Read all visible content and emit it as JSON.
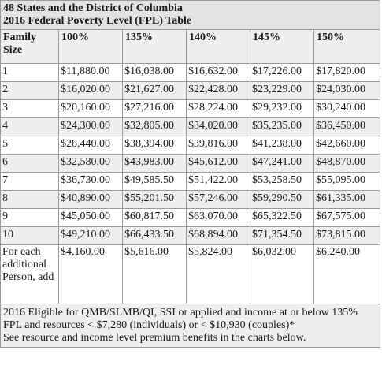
{
  "title_lines": [
    "48 States and the District of Columbia",
    "2016 Federal Poverty Level (FPL) Table"
  ],
  "columns": [
    "Family Size",
    "100%",
    "135%",
    "140%",
    "145%",
    "150%"
  ],
  "rows": [
    [
      "1",
      "$11,880.00",
      "$16,038.00",
      "$16,632.00",
      "$17,226.00",
      "$17,820.00"
    ],
    [
      "2",
      "$16,020.00",
      "$21,627.00",
      "$22,428.00",
      "$23,229.00",
      "$24,030.00"
    ],
    [
      "3",
      "$20,160.00",
      "$27,216.00",
      "$28,224.00",
      "$29,232.00",
      "$30,240.00"
    ],
    [
      "4",
      "$24,300.00",
      "$32,805.00",
      "$34,020.00",
      "$35,235.00",
      "$36,450.00"
    ],
    [
      "5",
      "$28,440.00",
      "$38,394.00",
      "$39,816.00",
      "$41,238.00",
      "$42,660.00"
    ],
    [
      "6",
      "$32,580.00",
      "$43,983.00",
      "$45,612.00",
      "$47,241.00",
      "$48,870.00"
    ],
    [
      "7",
      "$36,730.00",
      "$49,585.50",
      "$51,422.00",
      "$53,258.50",
      "$55,095.00"
    ],
    [
      "8",
      "$40,890.00",
      "$55,201.50",
      "$57,246.00",
      "$59,290.50",
      "$61,335.00"
    ],
    [
      "9",
      "$45,050.00",
      "$60,817.50",
      "$63,070.00",
      "$65,322.50",
      "$67,575.00"
    ],
    [
      "10",
      "$49,210.00",
      "$66,433.50",
      "$68,894.00",
      "$71,354.50",
      "$73,815.00"
    ]
  ],
  "additional_row": [
    "For each additional Person, add",
    "$4,160.00",
    "$5,616.00",
    "$5,824.00",
    "$6,032.00",
    "$6,240.00"
  ],
  "footer_lines": [
    "2016 Eligible for QMB/SLMB/QI, SSI or applied and income at or below 135% FPL and resources < $7,280 (individuals) or < $10,930 (couples)*",
    "See resource and income level premium benefits in the charts below."
  ]
}
